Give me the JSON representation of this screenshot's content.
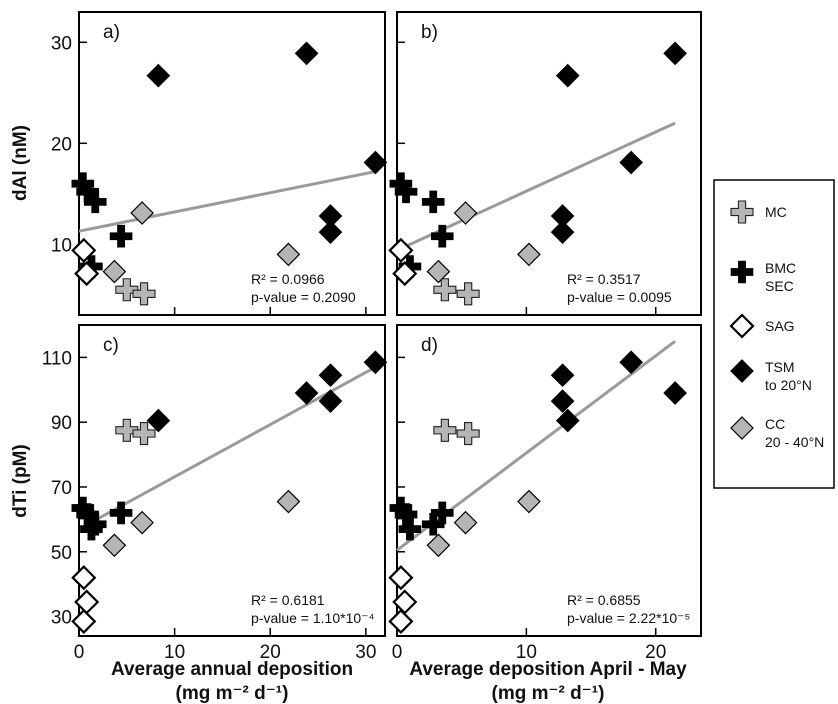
{
  "chart_data": {
    "type": "scatter",
    "marker_colors": {
      "light": "#b5b5b5",
      "dark": "#000000",
      "white": "#ffffff",
      "fit_line": "#9a9a9a"
    },
    "y_titles": [
      "dAl (nM)",
      "dTi (pM)"
    ],
    "x_titles": [
      [
        "Average annual deposition",
        "(mg m⁻² d⁻¹)"
      ],
      [
        "Average deposition April - May",
        "(mg m⁻² d⁻¹)"
      ]
    ],
    "legend": [
      {
        "marker": "plus",
        "color": "#b5b5b5",
        "label": [
          "MC"
        ]
      },
      {
        "marker": "plus",
        "color": "#000000",
        "label": [
          "BMC",
          "SEC"
        ]
      },
      {
        "marker": "diamond",
        "color": "#ffffff",
        "label": [
          "SAG"
        ]
      },
      {
        "marker": "diamond",
        "color": "#000000",
        "label": [
          "TSM",
          "to 20°N"
        ]
      },
      {
        "marker": "diamond",
        "color": "#b5b5b5",
        "label": [
          "CC",
          "20 - 40°N"
        ]
      }
    ],
    "panels": [
      {
        "label": "a)",
        "xlim": [
          0,
          32
        ],
        "ylim": [
          3,
          33
        ],
        "xticks": [
          0,
          10,
          20,
          30
        ],
        "yticks": [
          10,
          20,
          30
        ],
        "stats": {
          "r2": "R² = 0.0966",
          "p": "p-value = 0.2090"
        },
        "fit": [
          [
            0,
            11.3
          ],
          [
            31,
            17.2
          ]
        ],
        "series": [
          {
            "name": "MC",
            "x": [
              5.0,
              6.8
            ],
            "y": [
              5.5,
              5.1
            ]
          },
          {
            "name": "BMC SEC",
            "x": [
              0.4,
              0.9,
              1.7,
              4.4
            ],
            "y": [
              16.0,
              15.2,
              14.2,
              10.8
            ]
          },
          {
            "name": "BMC SEC",
            "x": [
              1.3
            ],
            "y": [
              7.8
            ]
          },
          {
            "name": "SAG",
            "x": [
              0.5,
              0.8
            ],
            "y": [
              9.4,
              7.1
            ]
          },
          {
            "name": "TSM to 20°N",
            "x": [
              8.3,
              23.8,
              26.3,
              26.3,
              31.0
            ],
            "y": [
              26.7,
              28.9,
              12.8,
              11.2,
              18.1
            ]
          },
          {
            "name": "CC 20 - 40°N",
            "x": [
              3.7,
              6.6,
              21.9
            ],
            "y": [
              7.3,
              13.1,
              9.0
            ]
          }
        ]
      },
      {
        "label": "b)",
        "xlim": [
          0,
          23.5
        ],
        "ylim": [
          3,
          33
        ],
        "xticks": [
          0,
          10,
          20
        ],
        "yticks": [
          10,
          20,
          30
        ],
        "stats": {
          "r2": "R² = 0.3517",
          "p": "p-value = 0.0095"
        },
        "fit": [
          [
            0,
            9.4
          ],
          [
            21.5,
            22.0
          ]
        ],
        "series": [
          {
            "name": "MC",
            "x": [
              3.7,
              5.5
            ],
            "y": [
              5.5,
              5.1
            ]
          },
          {
            "name": "BMC SEC",
            "x": [
              0.3,
              0.7,
              2.8,
              3.5
            ],
            "y": [
              16.0,
              15.2,
              14.2,
              10.8
            ]
          },
          {
            "name": "BMC SEC",
            "x": [
              1.0
            ],
            "y": [
              7.8
            ]
          },
          {
            "name": "SAG",
            "x": [
              0.3,
              0.6
            ],
            "y": [
              9.4,
              7.1
            ]
          },
          {
            "name": "TSM to 20°N",
            "x": [
              13.2,
              21.5,
              12.8,
              12.8,
              18.1
            ],
            "y": [
              26.7,
              28.9,
              12.8,
              11.2,
              18.1
            ]
          },
          {
            "name": "CC 20 - 40°N",
            "x": [
              3.2,
              5.3,
              10.2
            ],
            "y": [
              7.3,
              13.1,
              9.0
            ]
          }
        ]
      },
      {
        "label": "c)",
        "xlim": [
          0,
          32
        ],
        "ylim": [
          24,
          120
        ],
        "xticks": [
          0,
          10,
          20,
          30
        ],
        "yticks": [
          30,
          50,
          70,
          90,
          110
        ],
        "stats": {
          "r2": "R² = 0.6181",
          "p": "p-value = 1.10*10⁻⁴"
        },
        "fit": [
          [
            0.3,
            57.5
          ],
          [
            31,
            107.0
          ]
        ],
        "series": [
          {
            "name": "MC",
            "x": [
              5.0,
              6.8
            ],
            "y": [
              87.5,
              86.5
            ]
          },
          {
            "name": "BMC SEC",
            "x": [
              0.4,
              0.9,
              1.7,
              4.4,
              1.3
            ],
            "y": [
              63.5,
              61.5,
              58.5,
              62.0,
              57.0
            ]
          },
          {
            "name": "SAG",
            "x": [
              0.5,
              0.8,
              0.5
            ],
            "y": [
              42.0,
              34.5,
              28.5
            ]
          },
          {
            "name": "TSM to 20°N",
            "x": [
              8.3,
              23.8,
              26.3,
              26.3,
              31.0
            ],
            "y": [
              90.5,
              99.0,
              104.5,
              96.5,
              108.5
            ]
          },
          {
            "name": "CC 20 - 40°N",
            "x": [
              3.7,
              6.6,
              21.9
            ],
            "y": [
              52.0,
              59.0,
              65.5
            ]
          }
        ]
      },
      {
        "label": "d)",
        "xlim": [
          0,
          23.5
        ],
        "ylim": [
          24,
          120
        ],
        "xticks": [
          0,
          10,
          20
        ],
        "yticks": [
          30,
          50,
          70,
          90,
          110
        ],
        "stats": {
          "r2": "R² = 0.6855",
          "p": "p-value = 2.22*10⁻⁵"
        },
        "fit": [
          [
            0,
            50.5
          ],
          [
            21.5,
            115.0
          ]
        ],
        "series": [
          {
            "name": "MC",
            "x": [
              3.7,
              5.5
            ],
            "y": [
              87.5,
              86.5
            ]
          },
          {
            "name": "BMC SEC",
            "x": [
              0.3,
              0.7,
              2.8,
              3.5,
              1.0
            ],
            "y": [
              63.5,
              61.5,
              58.5,
              62.0,
              57.0
            ]
          },
          {
            "name": "SAG",
            "x": [
              0.3,
              0.6,
              0.3
            ],
            "y": [
              42.0,
              34.5,
              28.5
            ]
          },
          {
            "name": "TSM to 20°N",
            "x": [
              13.2,
              21.5,
              12.8,
              12.8,
              18.1
            ],
            "y": [
              90.5,
              99.0,
              104.5,
              96.5,
              108.5
            ]
          },
          {
            "name": "CC 20 - 40°N",
            "x": [
              3.2,
              5.3,
              10.2
            ],
            "y": [
              52.0,
              59.0,
              65.5
            ]
          }
        ]
      }
    ]
  }
}
